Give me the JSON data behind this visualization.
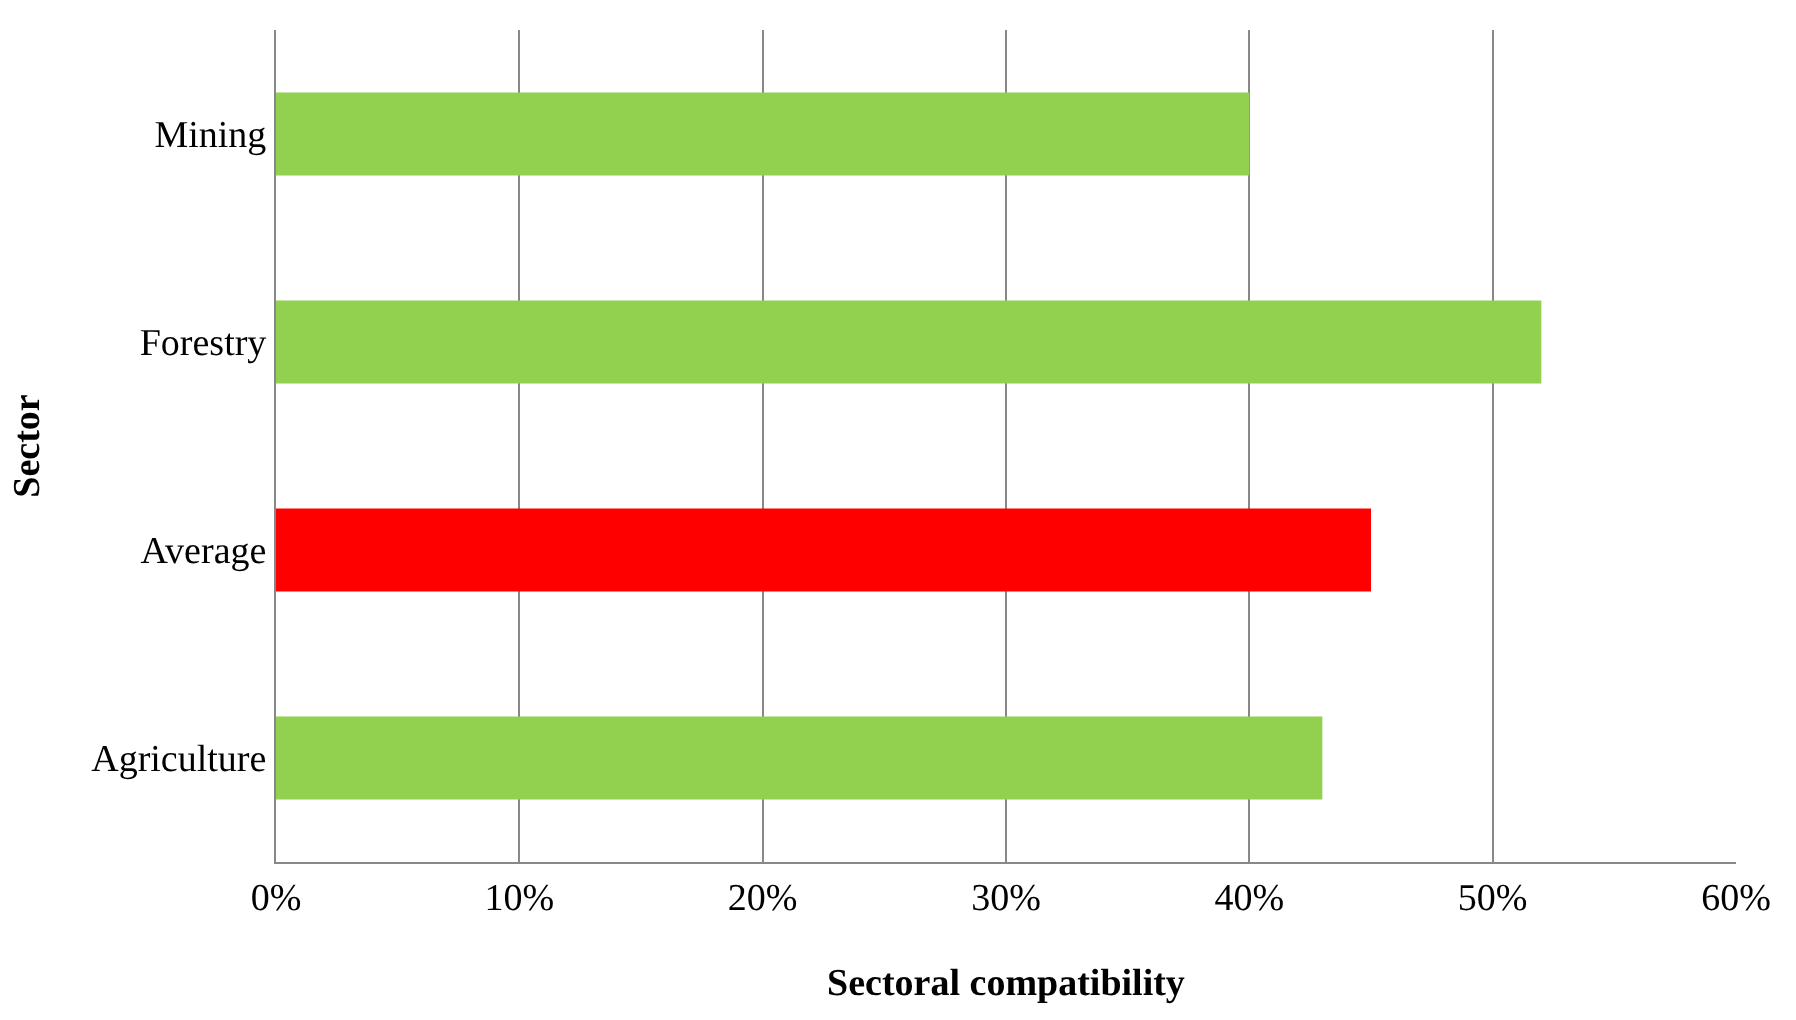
{
  "chart_data": {
    "type": "bar",
    "orientation": "horizontal",
    "xlabel": "Sectoral compatibility",
    "ylabel": "Sector",
    "categories": [
      "Mining",
      "Forestry",
      "Average",
      "Agriculture"
    ],
    "values": [
      40,
      52,
      45,
      43
    ],
    "colors": [
      "#92d050",
      "#92d050",
      "#ff0000",
      "#92d050"
    ],
    "xlim": [
      0,
      60
    ],
    "xticks": [
      {
        "value": 0,
        "label": "0%"
      },
      {
        "value": 10,
        "label": "10%"
      },
      {
        "value": 20,
        "label": "20%"
      },
      {
        "value": 30,
        "label": "30%"
      },
      {
        "value": 40,
        "label": "40%"
      },
      {
        "value": 50,
        "label": "50%"
      },
      {
        "value": 60,
        "label": "60%"
      }
    ],
    "grid": "x",
    "legend": false
  }
}
